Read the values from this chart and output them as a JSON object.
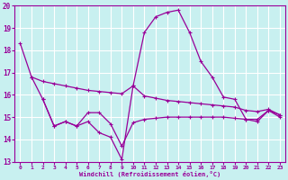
{
  "xlabel": "Windchill (Refroidissement éolien,°C)",
  "bg_color": "#c8f0f0",
  "line_color": "#990099",
  "grid_color": "#ffffff",
  "ylim": [
    13,
    20
  ],
  "yticks": [
    13,
    14,
    15,
    16,
    17,
    18,
    19,
    20
  ],
  "xticks": [
    0,
    1,
    2,
    3,
    4,
    5,
    6,
    7,
    8,
    9,
    10,
    11,
    12,
    13,
    14,
    15,
    16,
    17,
    18,
    19,
    20,
    21,
    22,
    23
  ],
  "series": [
    {
      "x": [
        0,
        1,
        2,
        3,
        4,
        5,
        6,
        7,
        8,
        9,
        10,
        11,
        12,
        13,
        14,
        15,
        16,
        17,
        18,
        19,
        20,
        21,
        22,
        23
      ],
      "y": [
        18.3,
        16.8,
        15.8,
        14.6,
        14.8,
        14.6,
        14.8,
        14.3,
        14.1,
        13.1,
        16.4,
        18.8,
        19.5,
        19.7,
        19.8,
        18.8,
        17.5,
        16.8,
        15.9,
        15.8,
        14.9,
        14.8,
        15.3,
        15.1
      ]
    },
    {
      "x": [
        1,
        2,
        3,
        4,
        5,
        6,
        7,
        8,
        9,
        10,
        11,
        12,
        13,
        14,
        15,
        16,
        17,
        18,
        19,
        20,
        21,
        22,
        23
      ],
      "y": [
        16.8,
        16.6,
        16.5,
        16.4,
        16.3,
        16.2,
        16.15,
        16.1,
        16.05,
        16.4,
        15.95,
        15.85,
        15.75,
        15.7,
        15.65,
        15.6,
        15.55,
        15.5,
        15.45,
        15.3,
        15.25,
        15.35,
        15.1
      ]
    },
    {
      "x": [
        2,
        3,
        4,
        5,
        6,
        7,
        8,
        9,
        10,
        11,
        12,
        13,
        14,
        15,
        16,
        17,
        18,
        19,
        20,
        21,
        22,
        23
      ],
      "y": [
        15.8,
        14.6,
        14.8,
        14.6,
        15.2,
        15.2,
        14.7,
        13.7,
        14.75,
        14.9,
        14.95,
        15.0,
        15.0,
        15.0,
        15.0,
        15.0,
        15.0,
        14.95,
        14.9,
        14.9,
        15.3,
        15.0
      ]
    }
  ]
}
